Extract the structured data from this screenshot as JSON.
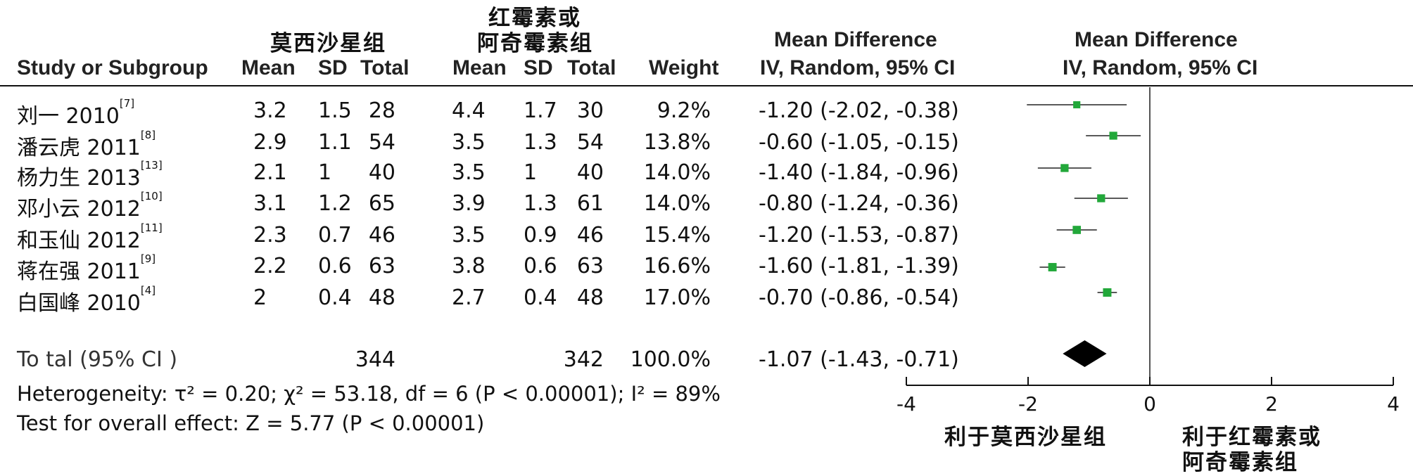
{
  "header": {
    "study_col": "Study or Subgroup",
    "exp_group": "莫西沙星组",
    "ctrl_group_line1": "红霉素或",
    "ctrl_group_line2": "阿奇霉素组",
    "mean": "Mean",
    "sd": "SD",
    "total": "Total",
    "weight": "Weight",
    "md_col_title": "Mean Difference",
    "md_col_sub": "IV, Random, 95% CI",
    "plot_col_title": "Mean Difference",
    "plot_col_sub": "IV, Random, 95% CI"
  },
  "studies": [
    {
      "name": "刘一 2010",
      "ref": "[7]",
      "e_mean": "3.2",
      "e_sd": "1.5",
      "e_total": "28",
      "c_mean": "4.4",
      "c_sd": "1.7",
      "c_total": "30",
      "weight": "9.2%",
      "md_text": "-1.20 (-2.02, -0.38)"
    },
    {
      "name": "潘云虎 2011",
      "ref": "[8]",
      "e_mean": "2.9",
      "e_sd": "1.1",
      "e_total": "54",
      "c_mean": "3.5",
      "c_sd": "1.3",
      "c_total": "54",
      "weight": "13.8%",
      "md_text": "-0.60 (-1.05, -0.15)"
    },
    {
      "name": "杨力生 2013",
      "ref": "[13]",
      "e_mean": "2.1",
      "e_sd": "1",
      "e_total": "40",
      "c_mean": "3.5",
      "c_sd": "1",
      "c_total": "40",
      "weight": "14.0%",
      "md_text": "-1.40 (-1.84, -0.96)"
    },
    {
      "name": "邓小云 2012",
      "ref": "[10]",
      "e_mean": "3.1",
      "e_sd": "1.2",
      "e_total": "65",
      "c_mean": "3.9",
      "c_sd": "1.3",
      "c_total": "61",
      "weight": "14.0%",
      "md_text": "-0.80 (-1.24, -0.36)"
    },
    {
      "name": "和玉仙 2012",
      "ref": "[11]",
      "e_mean": "2.3",
      "e_sd": "0.7",
      "e_total": "46",
      "c_mean": "3.5",
      "c_sd": "0.9",
      "c_total": "46",
      "weight": "15.4%",
      "md_text": "-1.20 (-1.53, -0.87)"
    },
    {
      "name": "蒋在强 2011",
      "ref": "[9]",
      "e_mean": "2.2",
      "e_sd": "0.6",
      "e_total": "63",
      "c_mean": "3.8",
      "c_sd": "0.6",
      "c_total": "63",
      "weight": "16.6%",
      "md_text": "-1.60 (-1.81, -1.39)"
    },
    {
      "name": "白国峰 2010",
      "ref": "[4]",
      "e_mean": "2",
      "e_sd": "0.4",
      "e_total": "48",
      "c_mean": "2.7",
      "c_sd": "0.4",
      "c_total": "48",
      "weight": "17.0%",
      "md_text": "-0.70 (-0.86, -0.54)"
    }
  ],
  "total": {
    "label": "To tal (95% CI )",
    "e_total": "344",
    "c_total": "342",
    "weight": "100.0%",
    "md_text": "-1.07 (-1.43, -0.71)"
  },
  "heterogeneity": "Heterogeneity: τ² = 0.20; χ² = 53.18, df = 6 (P < 0.00001); I² = 89%",
  "overall_effect": "Test for overall effect: Z = 5.77 (P < 0.00001)",
  "favours": {
    "left": "利于莫西沙星组",
    "right_line1": "利于红霉素或",
    "right_line2": "阿奇霉素组"
  },
  "chart_data": {
    "type": "forest",
    "xlim": [
      -4,
      4
    ],
    "ticks": [
      -4,
      -2,
      0,
      2,
      4
    ],
    "tick_labels": [
      "-4",
      "-2",
      "0",
      "2",
      "4"
    ],
    "null_line": 0,
    "points": [
      {
        "study": "刘一 2010",
        "md": -1.2,
        "lo": -2.02,
        "hi": -0.38,
        "weight": 9.2
      },
      {
        "study": "潘云虎 2011",
        "md": -0.6,
        "lo": -1.05,
        "hi": -0.15,
        "weight": 13.8
      },
      {
        "study": "杨力生 2013",
        "md": -1.4,
        "lo": -1.84,
        "hi": -0.96,
        "weight": 14.0
      },
      {
        "study": "邓小云 2012",
        "md": -0.8,
        "lo": -1.24,
        "hi": -0.36,
        "weight": 14.0
      },
      {
        "study": "和玉仙 2012",
        "md": -1.2,
        "lo": -1.53,
        "hi": -0.87,
        "weight": 15.4
      },
      {
        "study": "蒋在强 2011",
        "md": -1.6,
        "lo": -1.81,
        "hi": -1.39,
        "weight": 16.6
      },
      {
        "study": "白国峰 2010",
        "md": -0.7,
        "lo": -0.86,
        "hi": -0.54,
        "weight": 17.0
      }
    ],
    "pooled": {
      "md": -1.07,
      "lo": -1.43,
      "hi": -0.71
    },
    "marker_color": "#22a83a"
  }
}
